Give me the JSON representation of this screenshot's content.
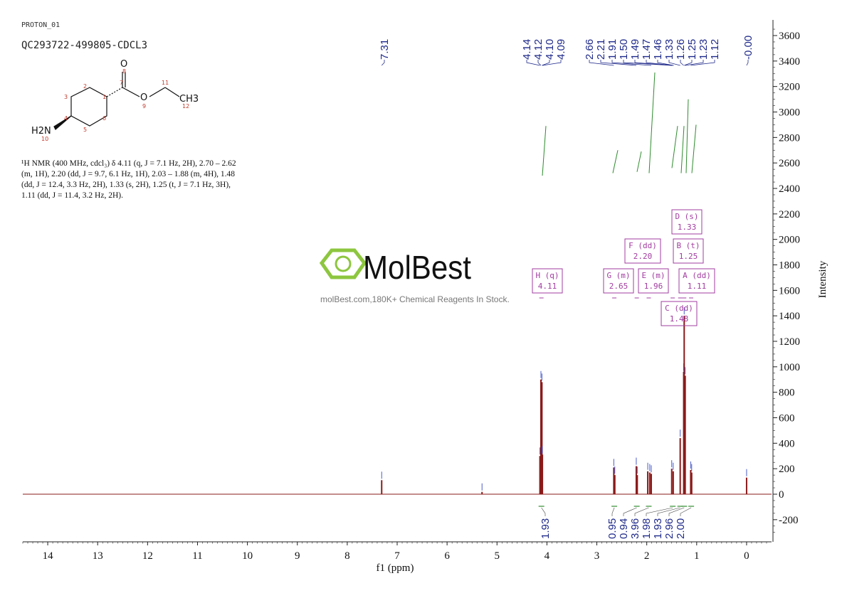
{
  "header": {
    "experiment": "PROTON_01",
    "sample": "QC293722-499805-CDCL3"
  },
  "description_lines": [
    "¹H NMR (400 MHz, cdcl₃) δ 4.11 (q, J = 7.1 Hz, 2H), 2.70 – 2.62",
    "(m, 1H), 2.20 (dd, J = 9.7, 6.1 Hz, 1H), 2.03 – 1.88 (m, 4H), 1.48",
    "(dd, J = 12.4, 3.3 Hz, 2H), 1.33 (s, 2H), 1.25 (t, J = 7.1 Hz, 3H),",
    "1.11 (dd, J = 11.4, 3.2 Hz, 2H)."
  ],
  "structure": {
    "atom_labels": [
      "O",
      "O",
      "CH3",
      "H2N"
    ],
    "atom_numbers": [
      "1",
      "2",
      "3",
      "4",
      "5",
      "6",
      "7",
      "8",
      "9",
      "10",
      "11",
      "12"
    ]
  },
  "watermark": {
    "brand": "MolBest",
    "tagline": "molBest.com,180K+ Chemical Reagents In Stock.",
    "color": "#8dc63f"
  },
  "colors": {
    "spectrum": "#8b1a1a",
    "peak_label": "#1f2a8a",
    "integral": "#2e8b2e",
    "multiplet": "#a23ca0"
  },
  "chart_data": {
    "type": "line",
    "title": "",
    "xlabel": "f1 (ppm)",
    "ylabel": "Intensity",
    "xlim": [
      14.5,
      -0.5
    ],
    "ylim": [
      -350,
      3700
    ],
    "x_ticks": [
      14,
      13,
      12,
      11,
      10,
      9,
      8,
      7,
      6,
      5,
      4,
      3,
      2,
      1,
      0
    ],
    "y_ticks": [
      -200,
      0,
      200,
      400,
      600,
      800,
      1000,
      1200,
      1400,
      1600,
      1800,
      2000,
      2200,
      2400,
      2600,
      2800,
      3000,
      3200,
      3400,
      3600
    ],
    "peaks": [
      {
        "ppm": 7.31,
        "height": 110
      },
      {
        "ppm": 4.12,
        "height": 900
      },
      {
        "ppm": 4.1,
        "height": 880
      },
      {
        "ppm": 4.14,
        "height": 300
      },
      {
        "ppm": 4.09,
        "height": 310
      },
      {
        "ppm": 2.66,
        "height": 210
      },
      {
        "ppm": 2.64,
        "height": 150
      },
      {
        "ppm": 2.21,
        "height": 220
      },
      {
        "ppm": 2.19,
        "height": 150
      },
      {
        "ppm": 1.98,
        "height": 180
      },
      {
        "ppm": 1.94,
        "height": 170
      },
      {
        "ppm": 1.91,
        "height": 160
      },
      {
        "ppm": 1.5,
        "height": 200
      },
      {
        "ppm": 1.47,
        "height": 180
      },
      {
        "ppm": 1.33,
        "height": 440
      },
      {
        "ppm": 1.26,
        "height": 960
      },
      {
        "ppm": 1.25,
        "height": 1400
      },
      {
        "ppm": 1.23,
        "height": 930
      },
      {
        "ppm": 1.12,
        "height": 190
      },
      {
        "ppm": 1.1,
        "height": 170
      },
      {
        "ppm": 0.0,
        "height": 130
      },
      {
        "ppm": 5.3,
        "height": 18
      }
    ],
    "peak_labels": [
      "7.31",
      "4.14",
      "4.12",
      "4.10",
      "4.09",
      "2.66",
      "2.21",
      "1.91",
      "1.50",
      "1.49",
      "1.47",
      "1.46",
      "1.33",
      "1.26",
      "1.25",
      "1.23",
      "1.12",
      "-0.00"
    ],
    "multiplets": [
      {
        "letter": "H",
        "type": "(q)",
        "shift": "4.11",
        "ppm": 4.11
      },
      {
        "letter": "G",
        "type": "(m)",
        "shift": "2.65",
        "ppm": 2.65
      },
      {
        "letter": "F",
        "type": "(dd)",
        "shift": "2.20",
        "ppm": 2.2
      },
      {
        "letter": "E",
        "type": "(m)",
        "shift": "1.96",
        "ppm": 1.96
      },
      {
        "letter": "D",
        "type": "(s)",
        "shift": "1.33",
        "ppm": 1.33
      },
      {
        "letter": "C",
        "type": "(dd)",
        "shift": "1.48",
        "ppm": 1.48
      },
      {
        "letter": "B",
        "type": "(t)",
        "shift": "1.25",
        "ppm": 1.25
      },
      {
        "letter": "A",
        "type": "(dd)",
        "shift": "1.11",
        "ppm": 1.11
      }
    ],
    "integrals": [
      {
        "label": "1.93",
        "ppm": 4.11
      },
      {
        "label": "0.95",
        "ppm": 2.65
      },
      {
        "label": "0.94",
        "ppm": 2.2
      },
      {
        "label": "3.96",
        "ppm": 1.96
      },
      {
        "label": "1.98",
        "ppm": 1.48
      },
      {
        "label": "1.93",
        "ppm": 1.33
      },
      {
        "label": "2.96",
        "ppm": 1.25
      },
      {
        "label": "2.00",
        "ppm": 1.11
      }
    ]
  }
}
